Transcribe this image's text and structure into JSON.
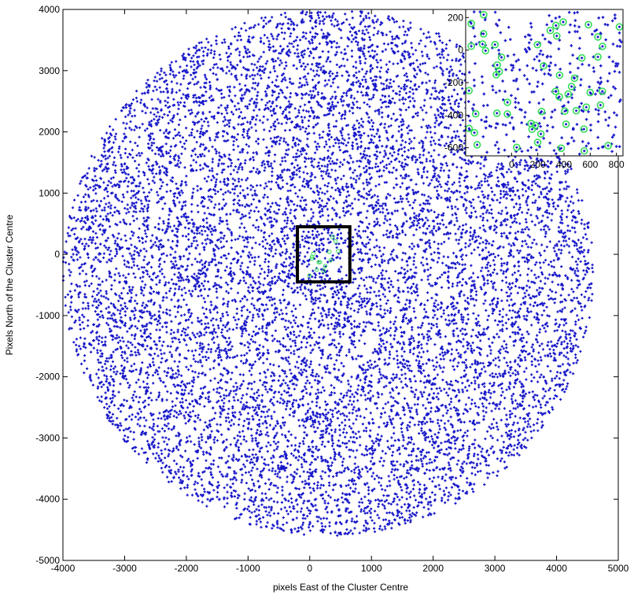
{
  "chart_data": [
    {
      "type": "scatter",
      "title": "",
      "xlabel": "pixels East of the Cluster Centre",
      "ylabel": "Pixels North of the Cluster Centre",
      "xlim": [
        -4000,
        5000
      ],
      "ylim": [
        -5000,
        4000
      ],
      "xticks": [
        "-4000",
        "-3000",
        "-2000",
        "-1000",
        "0",
        "1000",
        "2000",
        "3000",
        "4000",
        "5000"
      ],
      "yticks": [
        "-5000",
        "-4000",
        "-3000",
        "-2000",
        "-1000",
        "0",
        "1000",
        "2000",
        "3000",
        "4000"
      ],
      "grid": false,
      "series": [
        {
          "marker": "dot",
          "color": "#1515c8",
          "distribution": "approximately uniform stars filling a disc",
          "disc_center": [
            300,
            -300
          ],
          "disc_radius": 4300,
          "point_count": 11000
        }
      ],
      "zoom_box": {
        "x": [
          -200,
          650
        ],
        "y": [
          -450,
          450
        ],
        "color": "#000000"
      }
    },
    {
      "type": "scatter",
      "title": "",
      "xlabel": "",
      "ylabel": "",
      "xlim": [
        -350,
        850
      ],
      "ylim": [
        -650,
        250
      ],
      "xticks": [
        "0",
        "200",
        "400",
        "600",
        "800"
      ],
      "yticks": [
        "-600",
        "-400",
        "-200",
        "0",
        "200"
      ],
      "legend": null,
      "series": [
        {
          "marker": "dot",
          "color": "#1515c8",
          "point_count": 320
        },
        {
          "marker": "circle",
          "color": "#33dd55",
          "point_count": 55
        }
      ]
    }
  ],
  "colors": {
    "points": "#1515c8",
    "matched": "#33dd55",
    "axes": "#000000",
    "background": "#ffffff"
  }
}
